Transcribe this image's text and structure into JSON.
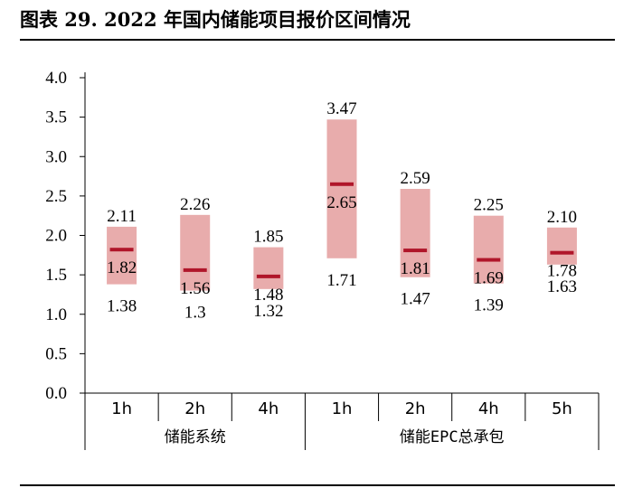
{
  "title": "图表 29. 2022 年国内储能项目报价区间情况",
  "chart_data": {
    "type": "floating-bar",
    "yticks": [
      "0.0",
      "0.5",
      "1.0",
      "1.5",
      "2.0",
      "2.5",
      "3.0",
      "3.5",
      "4.0"
    ],
    "ylim": [
      0,
      4
    ],
    "categories": [
      "1h",
      "2h",
      "4h",
      "1h",
      "2h",
      "4h",
      "5h"
    ],
    "groups": [
      {
        "label": "储能系统",
        "count": 3
      },
      {
        "label": "储能EPC总承包",
        "count": 4
      }
    ],
    "low": [
      1.38,
      1.3,
      1.32,
      1.71,
      1.47,
      1.39,
      1.63
    ],
    "high": [
      2.11,
      2.26,
      1.85,
      3.47,
      2.59,
      2.25,
      2.1
    ],
    "avg": [
      1.82,
      1.56,
      1.48,
      2.65,
      1.81,
      1.69,
      1.78
    ],
    "low_labels": [
      "1.38",
      "1.3",
      "1.32",
      "1.71",
      "1.47",
      "1.39",
      "1.63"
    ],
    "high_labels": [
      "2.11",
      "2.26",
      "1.85",
      "3.47",
      "2.59",
      "2.25",
      "2.10"
    ],
    "avg_labels": [
      "1.82",
      "1.56",
      "1.48",
      "2.65",
      "1.81",
      "1.69",
      "1.78"
    ],
    "colors": {
      "range": "#e8acac",
      "avg": "#b0162a"
    }
  }
}
